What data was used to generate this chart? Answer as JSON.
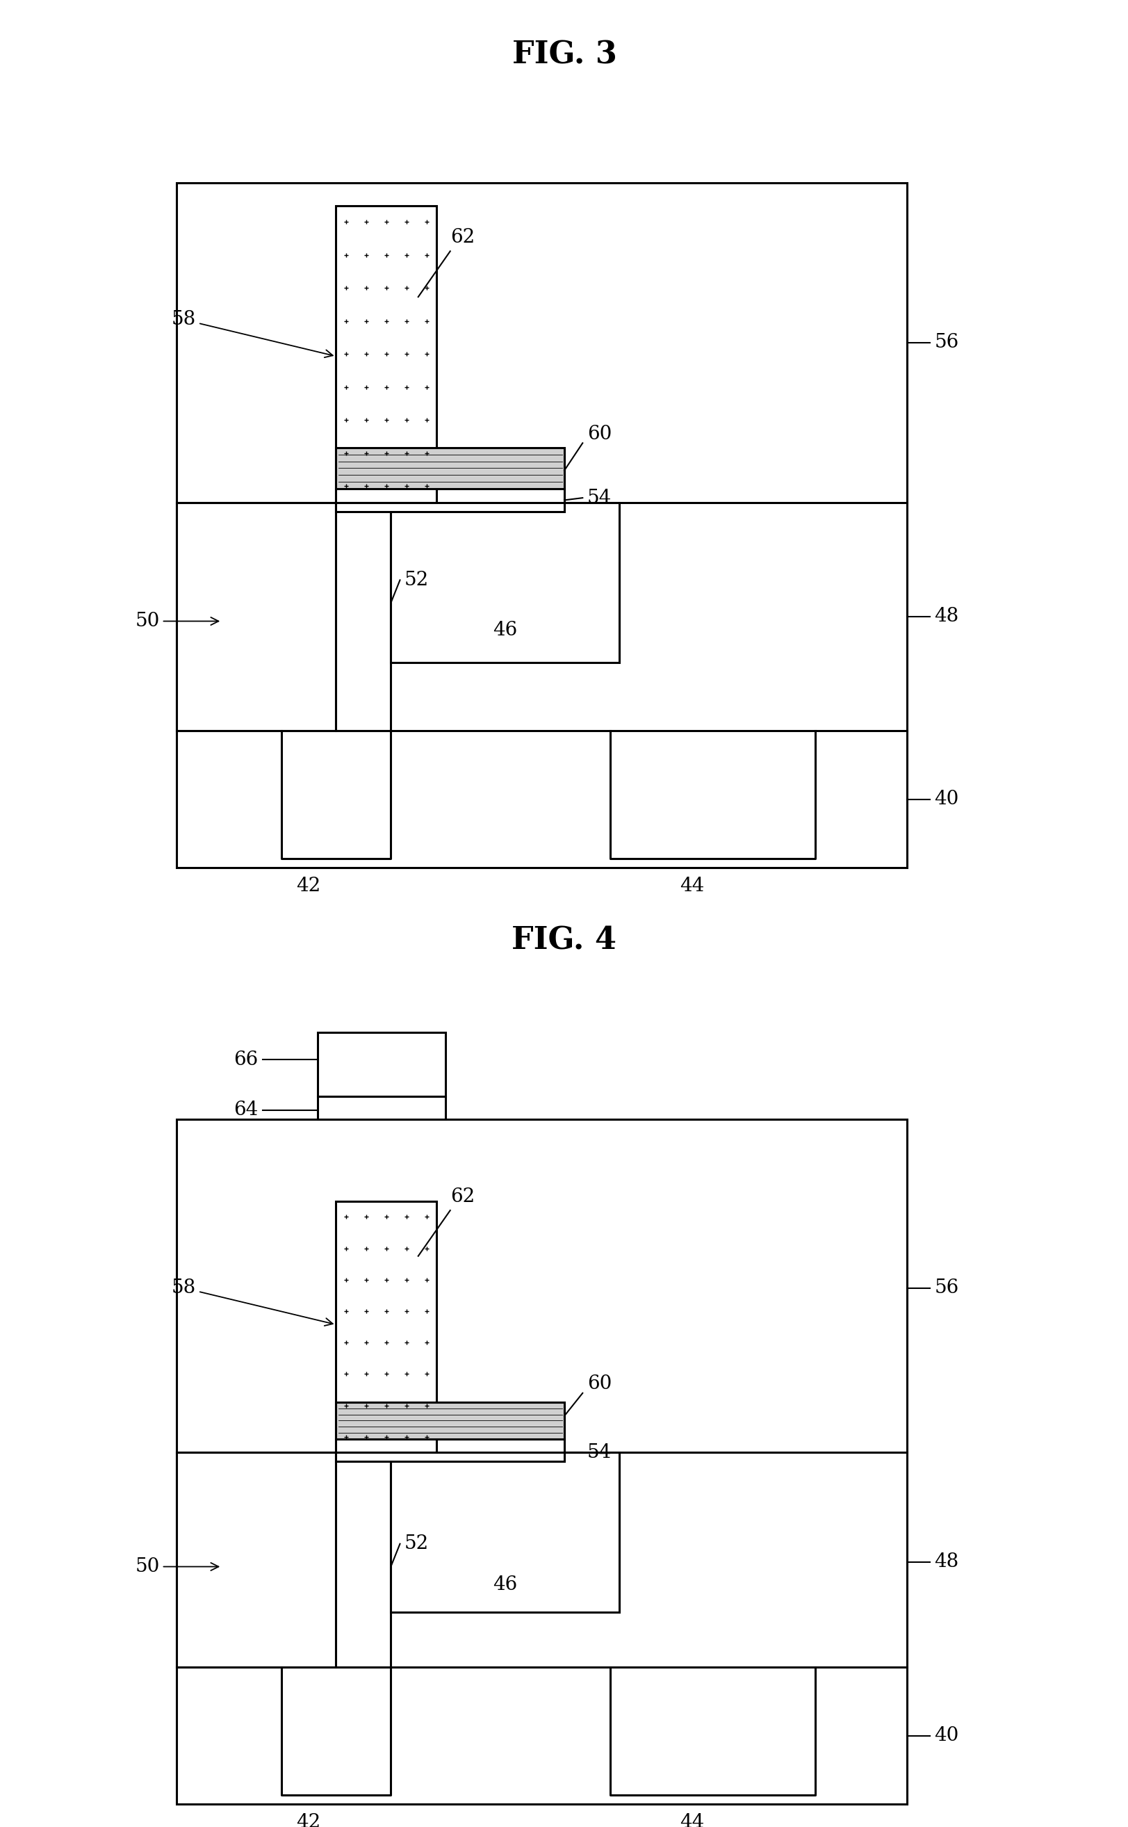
{
  "fig3_title": "FIG. 3",
  "fig4_title": "FIG. 4",
  "bg_color": "#ffffff",
  "lw": 2.2,
  "lw_thin": 1.5,
  "fs_title": 32,
  "fs_label": 20
}
